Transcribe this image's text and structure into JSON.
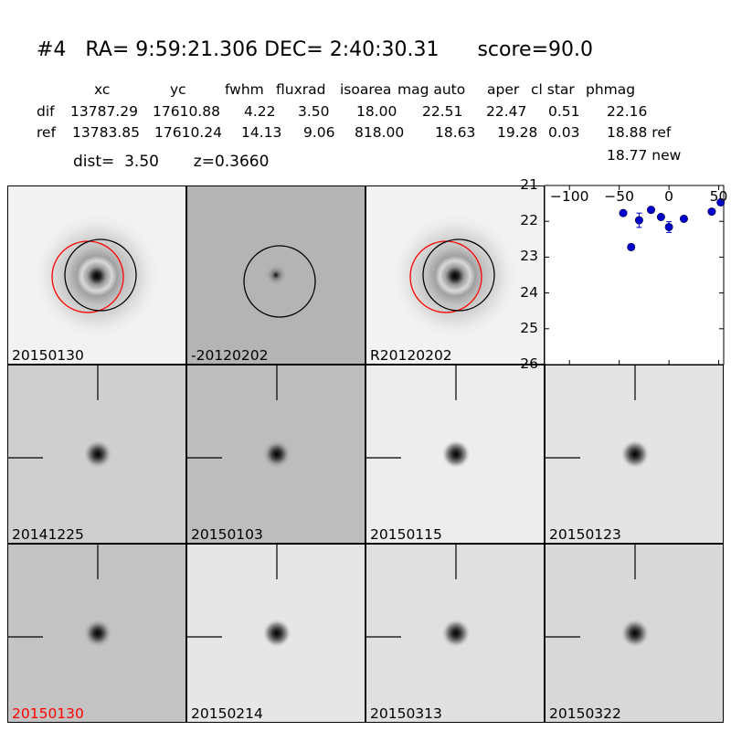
{
  "header": {
    "title": "#4   RA= 9:59:21.306 DEC= 2:40:30.31      score=90.0",
    "columns": [
      "xc",
      "yc",
      "fwhm",
      "fluxrad",
      "isoarea",
      "mag auto",
      "aper",
      "cl star",
      "phmag"
    ],
    "rows": [
      {
        "label": "dif",
        "values": [
          "13787.29",
          "17610.88",
          "4.22",
          "3.50",
          "18.00",
          "22.51",
          "22.47",
          "0.51",
          "22.16"
        ]
      },
      {
        "label": "ref",
        "values": [
          "13783.85",
          "17610.24",
          "14.13",
          "9.06",
          "818.00",
          "18.63",
          "19.28",
          "0.03",
          "18.88 ref"
        ]
      }
    ],
    "phmag_new": "18.77 new",
    "dist_label": "dist=",
    "dist_value": "3.50",
    "z_label": "z=0.3660"
  },
  "panels": [
    {
      "label": "20150130",
      "label_color": "#000000",
      "background": "#f2f2f2",
      "type": "galaxy",
      "circles": [
        "red",
        "black"
      ]
    },
    {
      "label": "-20120202",
      "label_color": "#000000",
      "background": "#b4b4b4",
      "type": "diff",
      "circles": [
        "black"
      ]
    },
    {
      "label": "R20120202",
      "label_color": "#000000",
      "background": "#f2f2f2",
      "type": "galaxy",
      "circles": [
        "red",
        "black"
      ]
    },
    {
      "label": "20141225",
      "label_color": "#000000",
      "background": "#cfcfcf",
      "type": "stamp"
    },
    {
      "label": "20150103",
      "label_color": "#000000",
      "background": "#bdbdbd",
      "type": "stamp"
    },
    {
      "label": "20150115",
      "label_color": "#000000",
      "background": "#ededed",
      "type": "stamp"
    },
    {
      "label": "20150123",
      "label_color": "#000000",
      "background": "#e4e4e4",
      "type": "stamp"
    },
    {
      "label": "20150130",
      "label_color": "#ff0000",
      "background": "#c3c3c3",
      "type": "stamp"
    },
    {
      "label": "20150214",
      "label_color": "#000000",
      "background": "#e6e6e6",
      "type": "stamp"
    },
    {
      "label": "20150313",
      "label_color": "#000000",
      "background": "#e0e0e0",
      "type": "stamp"
    },
    {
      "label": "20150322",
      "label_color": "#000000",
      "background": "#d8d8d8",
      "type": "stamp"
    }
  ],
  "chart_data": {
    "type": "scatter",
    "title": "",
    "xlabel": "",
    "ylabel": "",
    "xlim": [
      -125,
      55
    ],
    "ylim": [
      26,
      21
    ],
    "y_inverted": true,
    "xticks": [
      -100,
      -50,
      0,
      50
    ],
    "yticks": [
      21,
      22,
      23,
      24,
      25,
      26
    ],
    "marker_color": "#0000cc",
    "points": [
      {
        "x": -46,
        "y": 21.77,
        "yerr": 0.05
      },
      {
        "x": -38,
        "y": 22.72,
        "yerr": 0.08
      },
      {
        "x": -30,
        "y": 21.97,
        "yerr": 0.2
      },
      {
        "x": -18,
        "y": 21.68,
        "yerr": 0.05
      },
      {
        "x": -8,
        "y": 21.88,
        "yerr": 0.05
      },
      {
        "x": 0,
        "y": 22.16,
        "yerr": 0.15
      },
      {
        "x": 15,
        "y": 21.93,
        "yerr": 0.05
      },
      {
        "x": 43,
        "y": 21.73,
        "yerr": 0.05
      },
      {
        "x": 52,
        "y": 21.47,
        "yerr": 0.05
      }
    ]
  }
}
